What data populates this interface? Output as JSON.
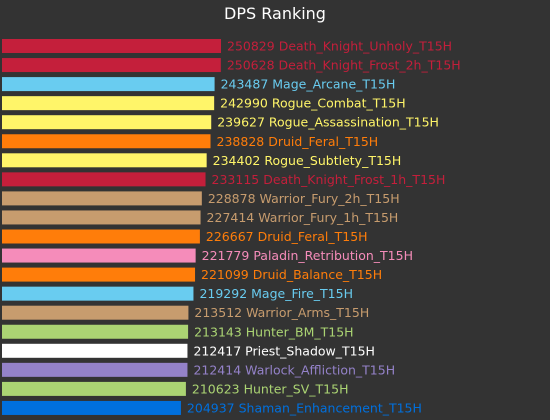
{
  "chart_data": {
    "type": "bar",
    "orientation": "horizontal",
    "title": "DPS Ranking",
    "xlabel": "",
    "ylabel": "",
    "grid": false,
    "legend": "none",
    "background_color": "#333333",
    "title_color": "#ffffff",
    "bars": [
      {
        "value": 250829,
        "label": "Death_Knight_Unholy_T15H",
        "color": "#c41f3b"
      },
      {
        "value": 250628,
        "label": "Death_Knight_Frost_2h_T15H",
        "color": "#c41f3b"
      },
      {
        "value": 243487,
        "label": "Mage_Arcane_T15H",
        "color": "#69ccf0"
      },
      {
        "value": 242990,
        "label": "Rogue_Combat_T15H",
        "color": "#fff569"
      },
      {
        "value": 239627,
        "label": "Rogue_Assassination_T15H",
        "color": "#fff569"
      },
      {
        "value": 238828,
        "label": "Druid_Feral_T15H",
        "color": "#ff7d0a"
      },
      {
        "value": 234402,
        "label": "Rogue_Subtlety_T15H",
        "color": "#fff569"
      },
      {
        "value": 233115,
        "label": "Death_Knight_Frost_1h_T15H",
        "color": "#c41f3b"
      },
      {
        "value": 228878,
        "label": "Warrior_Fury_2h_T15H",
        "color": "#c79c6e"
      },
      {
        "value": 227414,
        "label": "Warrior_Fury_1h_T15H",
        "color": "#c79c6e"
      },
      {
        "value": 226667,
        "label": "Druid_Feral_T15H",
        "color": "#ff7d0a"
      },
      {
        "value": 221779,
        "label": "Paladin_Retribution_T15H",
        "color": "#f58cba"
      },
      {
        "value": 221099,
        "label": "Druid_Balance_T15H",
        "color": "#ff7d0a"
      },
      {
        "value": 219292,
        "label": "Mage_Fire_T15H",
        "color": "#69ccf0"
      },
      {
        "value": 213512,
        "label": "Warrior_Arms_T15H",
        "color": "#c79c6e"
      },
      {
        "value": 213143,
        "label": "Hunter_BM_T15H",
        "color": "#abd473"
      },
      {
        "value": 212417,
        "label": "Priest_Shadow_T15H",
        "color": "#ffffff"
      },
      {
        "value": 212414,
        "label": "Warlock_Affliction_T15H",
        "color": "#9482c9"
      },
      {
        "value": 210623,
        "label": "Hunter_SV_T15H",
        "color": "#abd473"
      },
      {
        "value": 204937,
        "label": "Shaman_Enhancement_T15H",
        "color": "#0070de"
      }
    ]
  }
}
